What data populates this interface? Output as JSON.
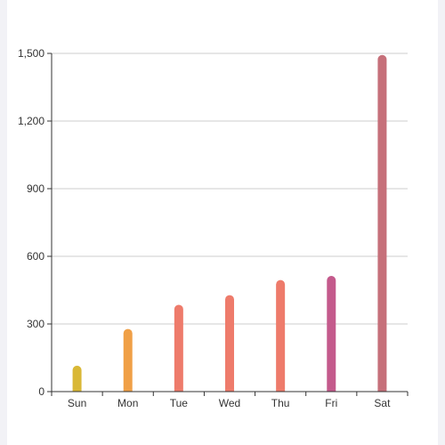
{
  "chart_data": {
    "type": "bar",
    "categories": [
      "Sun",
      "Mon",
      "Tue",
      "Wed",
      "Thu",
      "Fri",
      "Sat"
    ],
    "values": [
      115,
      278,
      385,
      428,
      495,
      513,
      1493
    ],
    "bar_colors": [
      "#d9b836",
      "#f0a047",
      "#ee7b6b",
      "#ee7b6b",
      "#ee7b6b",
      "#c45a8c",
      "#c6707a"
    ],
    "ylim": [
      0,
      1500
    ],
    "yticks": [
      0,
      300,
      600,
      900,
      1200,
      1500
    ],
    "ytick_labels": [
      "0",
      "300",
      "600",
      "900",
      "1,200",
      "1,500"
    ],
    "grid": true,
    "axis_color": "#333333",
    "grid_color": "#cccccc",
    "title": "",
    "xlabel": "",
    "ylabel": ""
  }
}
